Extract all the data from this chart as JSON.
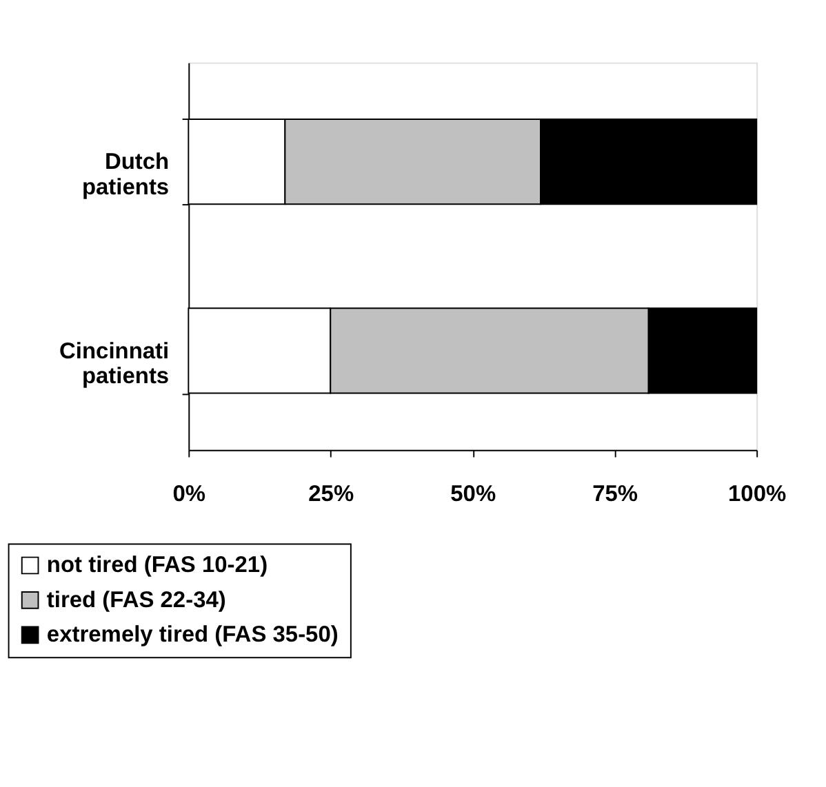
{
  "chart_data": {
    "type": "bar",
    "orientation": "horizontal",
    "stacked": true,
    "categories": [
      "Dutch patients",
      "Cincinnati patients"
    ],
    "series": [
      {
        "name": "not tired (FAS 10-21)",
        "color": "#ffffff",
        "values": [
          17,
          25
        ]
      },
      {
        "name": "tired (FAS 22-34)",
        "color": "#c0c0c0",
        "values": [
          45,
          56
        ]
      },
      {
        "name": "extremely tired (FAS 35-50)",
        "color": "#000000",
        "values": [
          38,
          19
        ]
      }
    ],
    "xlim": [
      0,
      100
    ],
    "xticks": [
      {
        "value": 0,
        "label": "0%"
      },
      {
        "value": 25,
        "label": "25%"
      },
      {
        "value": 50,
        "label": "50%"
      },
      {
        "value": 75,
        "label": "75%"
      },
      {
        "value": 100,
        "label": "100%"
      }
    ],
    "grid": false,
    "legend": "bottom left"
  }
}
